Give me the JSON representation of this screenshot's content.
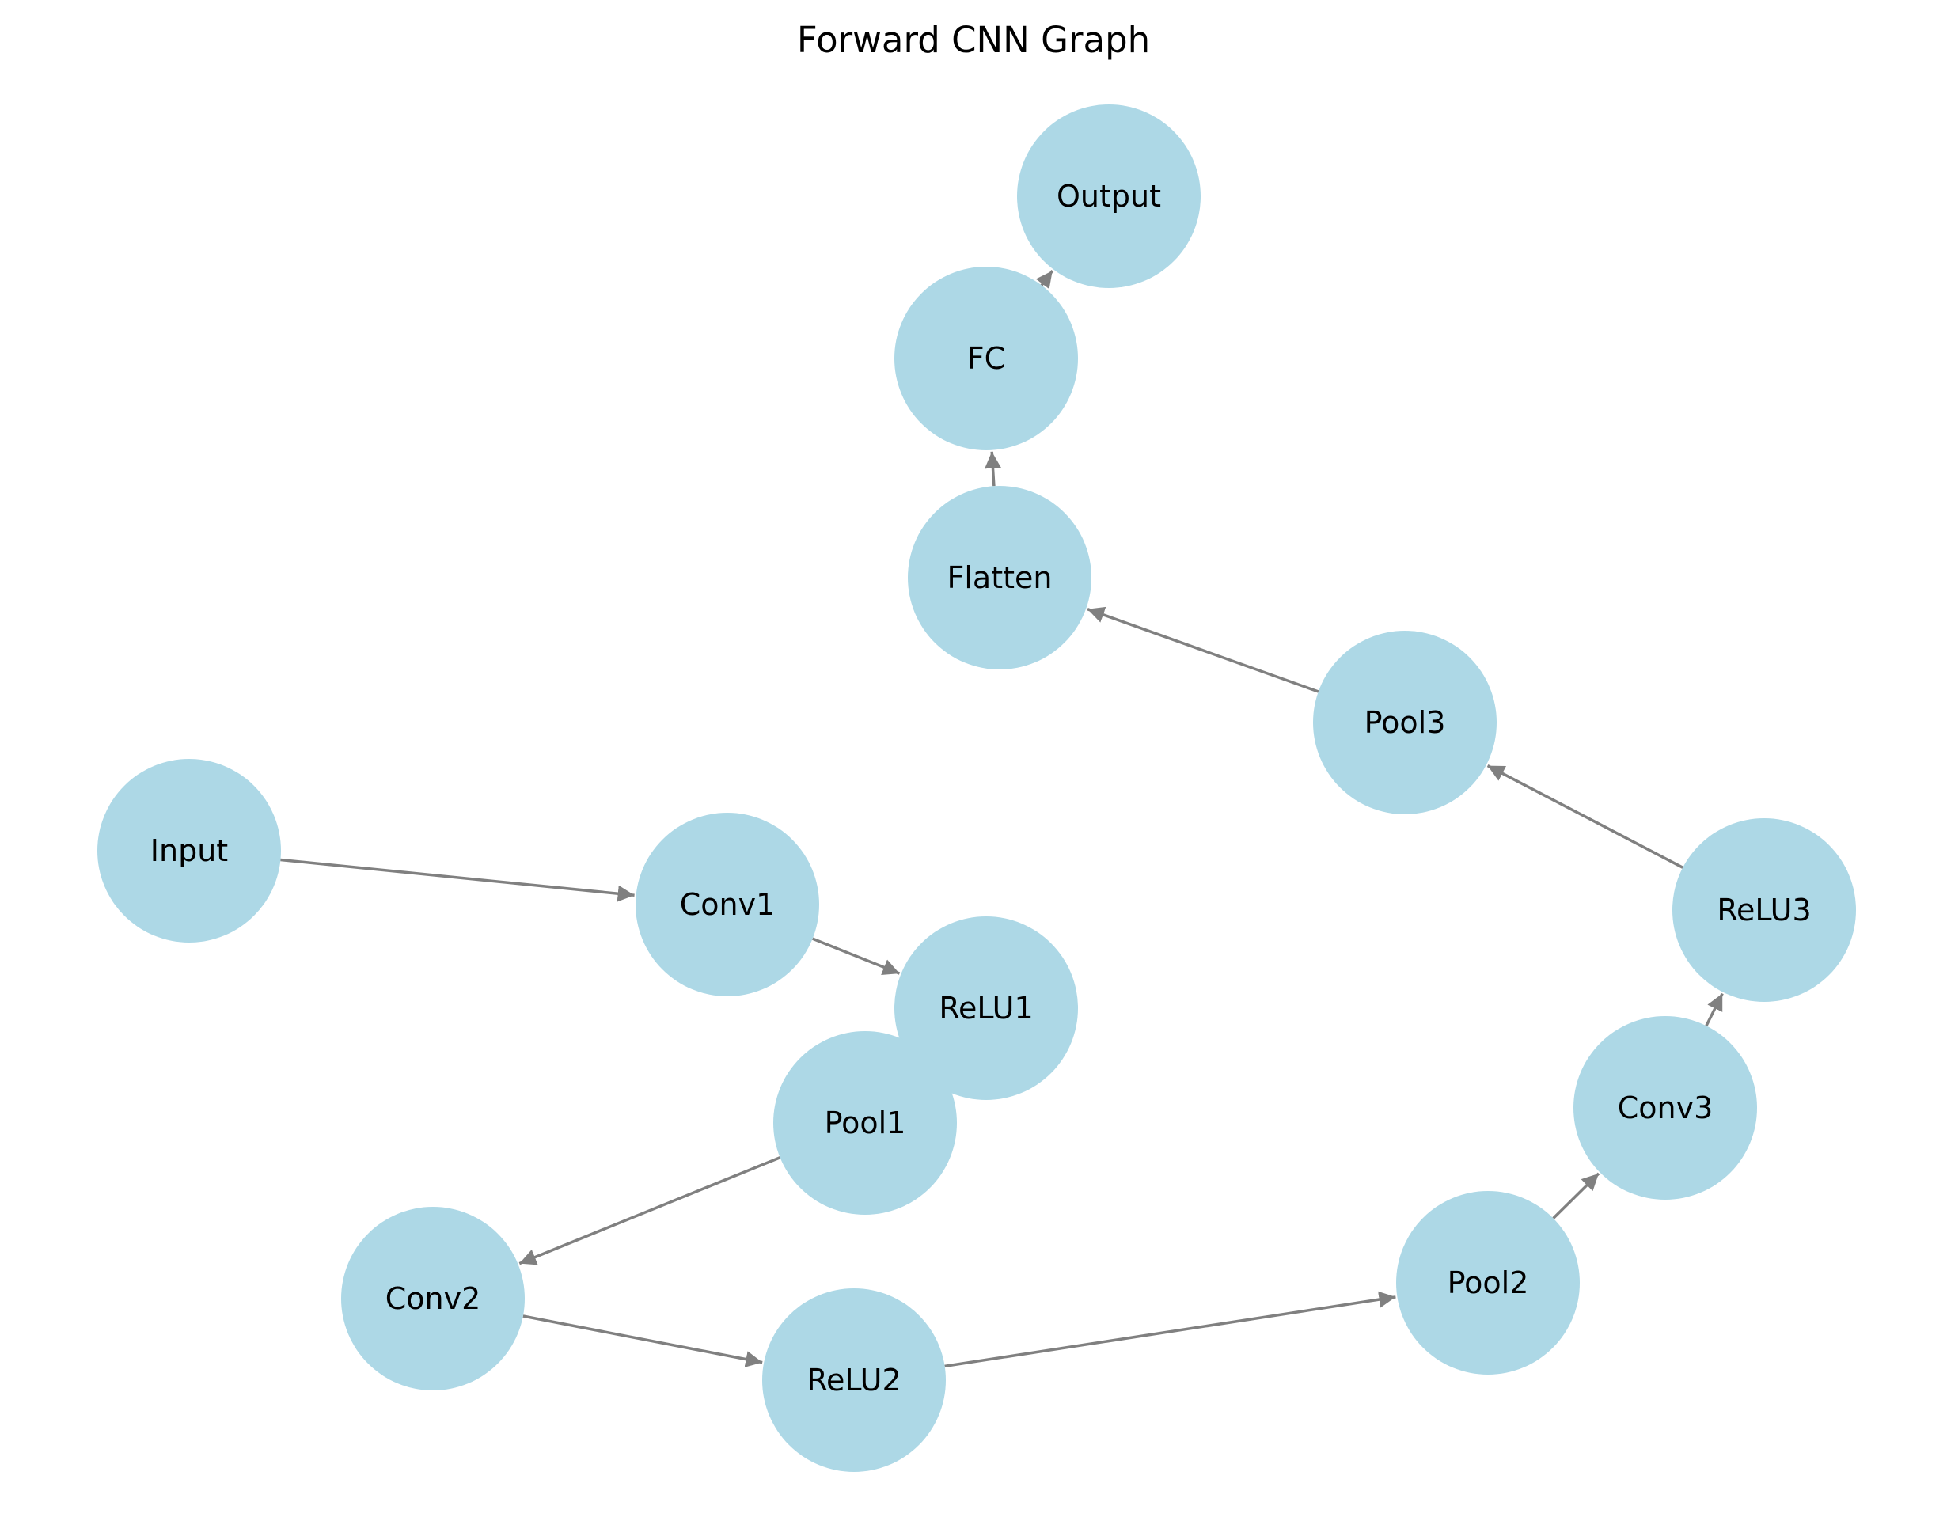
{
  "title": "Forward CNN Graph",
  "colors": {
    "node_fill": "#add8e6",
    "edge": "#808080",
    "text": "#000000",
    "background": "#ffffff"
  },
  "nodes": [
    {
      "id": "input",
      "label": "Input"
    },
    {
      "id": "conv1",
      "label": "Conv1"
    },
    {
      "id": "relu1",
      "label": "ReLU1"
    },
    {
      "id": "pool1",
      "label": "Pool1"
    },
    {
      "id": "conv2",
      "label": "Conv2"
    },
    {
      "id": "relu2",
      "label": "ReLU2"
    },
    {
      "id": "pool2",
      "label": "Pool2"
    },
    {
      "id": "conv3",
      "label": "Conv3"
    },
    {
      "id": "relu3",
      "label": "ReLU3"
    },
    {
      "id": "pool3",
      "label": "Pool3"
    },
    {
      "id": "flatten",
      "label": "Flatten"
    },
    {
      "id": "fc",
      "label": "FC"
    },
    {
      "id": "output",
      "label": "Output"
    }
  ],
  "edges": [
    {
      "from": "input",
      "to": "conv1"
    },
    {
      "from": "conv1",
      "to": "relu1"
    },
    {
      "from": "relu1",
      "to": "pool1"
    },
    {
      "from": "pool1",
      "to": "conv2"
    },
    {
      "from": "conv2",
      "to": "relu2"
    },
    {
      "from": "relu2",
      "to": "pool2"
    },
    {
      "from": "pool2",
      "to": "conv3"
    },
    {
      "from": "conv3",
      "to": "relu3"
    },
    {
      "from": "relu3",
      "to": "pool3"
    },
    {
      "from": "pool3",
      "to": "flatten"
    },
    {
      "from": "flatten",
      "to": "fc"
    },
    {
      "from": "fc",
      "to": "output"
    }
  ]
}
